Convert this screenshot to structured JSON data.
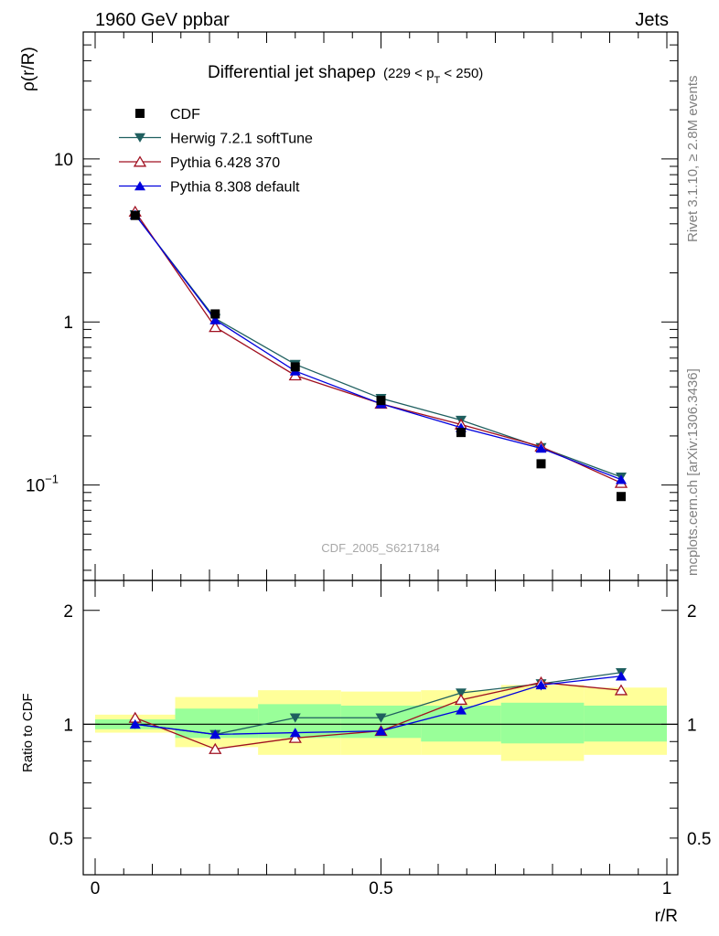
{
  "header": {
    "left": "1960 GeV ppbar",
    "right": "Jets"
  },
  "side_labels": {
    "rivet": "Rivet 3.1.10, ≥ 2.8M events",
    "mcplots": "mcplots.cern.ch [arXiv:1306.3436]"
  },
  "watermark": "CDF_2005_S6217184",
  "chart_data": {
    "type": "line",
    "title": "Differential jet shapeρ",
    "title_suffix": "(229 < p",
    "title_sub": "T",
    "title_end": " < 250)",
    "ylabel": "ρ(r/R)",
    "xlabel": "r/R",
    "yscale": "log",
    "xlim": [
      0,
      1
    ],
    "ylim": [
      0.026,
      60
    ],
    "yticks": [
      {
        "value": 10,
        "label": "10"
      },
      {
        "value": 1,
        "label": "1"
      },
      {
        "value": 0.1,
        "label": "10",
        "sup": "−1"
      }
    ],
    "x": [
      0.07,
      0.21,
      0.35,
      0.5,
      0.64,
      0.78,
      0.92
    ],
    "legend_position": "top-left",
    "data": {
      "name": "CDF",
      "color": "#000000",
      "marker": "square",
      "values": [
        4.5,
        1.12,
        0.53,
        0.33,
        0.21,
        0.135,
        0.085
      ]
    },
    "series": [
      {
        "name": "Herwig 7.2.1 softTune",
        "color": "#1f5f5f",
        "marker": "triangle-down",
        "values": [
          4.55,
          1.05,
          0.55,
          0.34,
          0.25,
          0.17,
          0.112
        ]
      },
      {
        "name": "Pythia 6.428 370",
        "color": "#a01020",
        "marker": "triangle-up-open",
        "values": [
          4.75,
          0.93,
          0.47,
          0.315,
          0.235,
          0.172,
          0.103
        ]
      },
      {
        "name": "Pythia 8.308 default",
        "color": "#0000dd",
        "marker": "triangle-up",
        "values": [
          4.55,
          1.03,
          0.5,
          0.315,
          0.225,
          0.168,
          0.108
        ]
      }
    ],
    "ratio": {
      "ylabel": "Ratio to CDF",
      "ylim": [
        0.4,
        2.4
      ],
      "yscale": "log",
      "yticks": [
        {
          "value": 2,
          "label": "2"
        },
        {
          "value": 1,
          "label": "1"
        },
        {
          "value": 0.5,
          "label": "0.5"
        }
      ],
      "bin_edges": [
        0,
        0.14,
        0.285,
        0.43,
        0.57,
        0.71,
        0.855,
        1.0
      ],
      "band_inner": [
        [
          0.97,
          1.03
        ],
        [
          0.92,
          1.1
        ],
        [
          0.92,
          1.13
        ],
        [
          0.92,
          1.12
        ],
        [
          0.9,
          1.12
        ],
        [
          0.89,
          1.14
        ],
        [
          0.9,
          1.12
        ]
      ],
      "band_outer": [
        [
          0.95,
          1.06
        ],
        [
          0.87,
          1.18
        ],
        [
          0.83,
          1.23
        ],
        [
          0.83,
          1.22
        ],
        [
          0.83,
          1.23
        ],
        [
          0.8,
          1.27
        ],
        [
          0.83,
          1.25
        ]
      ],
      "series": [
        {
          "name": "Herwig 7.2.1 softTune",
          "values": [
            1.0,
            0.94,
            1.04,
            1.04,
            1.21,
            1.28,
            1.37
          ]
        },
        {
          "name": "Pythia 6.428 370",
          "values": [
            1.04,
            0.86,
            0.92,
            0.96,
            1.16,
            1.29,
            1.23
          ]
        },
        {
          "name": "Pythia 8.308 default",
          "values": [
            1.0,
            0.94,
            0.95,
            0.96,
            1.09,
            1.27,
            1.34
          ]
        }
      ],
      "ratio_errors": [
        0,
        0,
        0,
        0,
        0,
        0.04,
        0.03
      ]
    },
    "xticks": [
      {
        "value": 0,
        "label": "0"
      },
      {
        "value": 0.5,
        "label": "0.5"
      },
      {
        "value": 1,
        "label": "1"
      }
    ]
  }
}
